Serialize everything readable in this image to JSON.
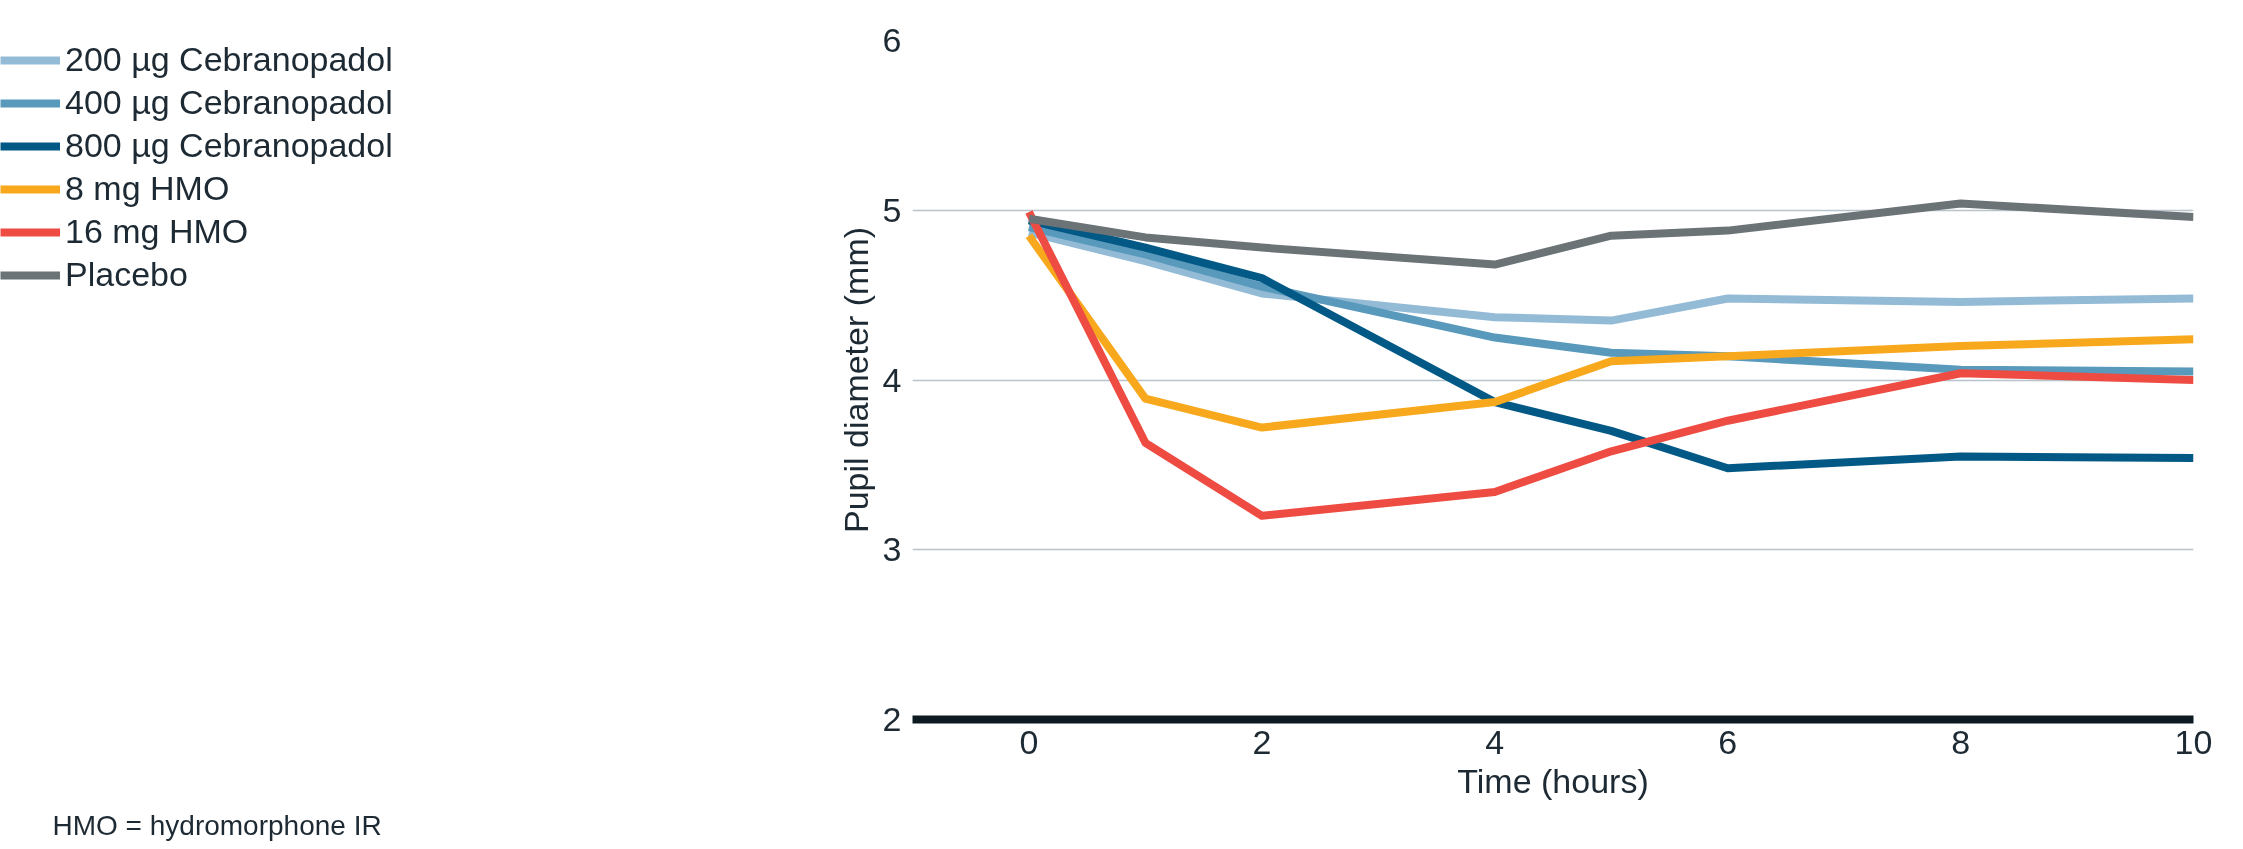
{
  "chart_data": {
    "type": "line",
    "xlabel": "Time (hours)",
    "ylabel": "Pupil diameter (mm)",
    "x": [
      0,
      1,
      2,
      4,
      5,
      6,
      8,
      10
    ],
    "xlim": [
      -1,
      10
    ],
    "xticks": [
      0,
      2,
      4,
      6,
      8,
      10
    ],
    "ylim": [
      2,
      6
    ],
    "yticks": [
      2,
      3,
      4,
      5,
      6
    ],
    "grid": "y",
    "legend": "top left",
    "line_style": "solid",
    "series": [
      {
        "name": "200 µg Cebranopadol",
        "color": "#94bbd6",
        "values": [
          4.87,
          4.7,
          4.51,
          4.37,
          4.35,
          4.48,
          4.46,
          4.48
        ]
      },
      {
        "name": "400 µg Cebranopadol",
        "color": "#5899bc",
        "values": [
          4.9,
          4.74,
          4.55,
          4.25,
          4.16,
          4.14,
          4.06,
          4.05
        ]
      },
      {
        "name": "800 µg Cebranopadol",
        "color": "#025985",
        "values": [
          4.94,
          4.78,
          4.6,
          3.87,
          3.7,
          3.48,
          3.55,
          3.54
        ]
      },
      {
        "name": "8 mg HMO",
        "color": "#f8a81d",
        "values": [
          4.85,
          3.89,
          3.72,
          3.87,
          4.11,
          4.14,
          4.2,
          4.24
        ]
      },
      {
        "name": "16 mg HMO",
        "color": "#ee4c43",
        "values": [
          4.99,
          3.63,
          3.2,
          3.34,
          3.58,
          3.76,
          4.04,
          4.0
        ]
      },
      {
        "name": "Placebo",
        "color": "#6b7377",
        "values": [
          4.95,
          4.84,
          4.78,
          4.68,
          4.85,
          4.88,
          5.04,
          4.96
        ]
      }
    ],
    "annotations": [
      "HMO = hydromorphone IR"
    ]
  }
}
